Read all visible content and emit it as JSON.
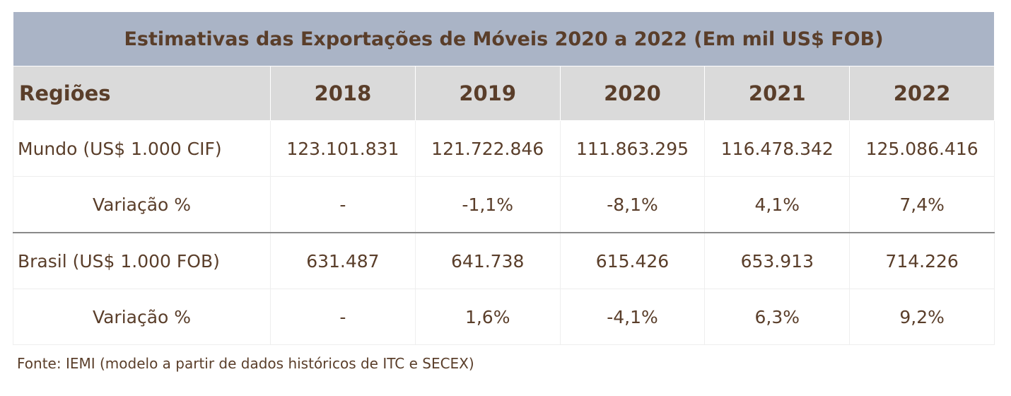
{
  "table": {
    "title": "Estimativas das Exportações de Móveis 2020 a 2022 (Em mil US$ FOB)",
    "header": [
      "Regiões",
      "2018",
      "2019",
      "2020",
      "2021",
      "2022"
    ],
    "rows": [
      {
        "label": "Mundo (US$ 1.000 CIF)",
        "values": [
          "123.101.831",
          "121.722.846",
          "111.863.295",
          "116.478.342",
          "125.086.416"
        ]
      },
      {
        "label": "Variação %",
        "values": [
          "-",
          "-1,1%",
          "-8,1%",
          "4,1%",
          "7,4%"
        ]
      },
      {
        "label": "Brasil (US$ 1.000 FOB)",
        "values": [
          "631.487",
          "641.738",
          "615.426",
          "653.913",
          "714.226"
        ]
      },
      {
        "label": "Variação %",
        "values": [
          "-",
          "1,6%",
          "-4,1%",
          "6,3%",
          "9,2%"
        ]
      }
    ]
  },
  "source": "Fonte: IEMI (modelo a partir de dados históricos de ITC e SECEX)"
}
